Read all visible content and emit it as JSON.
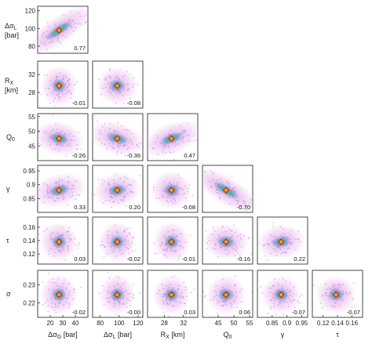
{
  "chart_data": {
    "type": "scatter",
    "layout": "corner-triangle",
    "parameters": [
      {
        "key": "dsG",
        "range": [
          10,
          50
        ],
        "ticks": [
          20,
          30,
          40
        ],
        "tick_labels": [
          "20",
          "30",
          "40"
        ],
        "label": "Δσ",
        "sub": "G",
        "unit": " [bar]"
      },
      {
        "key": "dsL",
        "range": [
          72,
          125
        ],
        "ticks": [
          80,
          100,
          120
        ],
        "tick_labels": [
          "80",
          "100",
          "120"
        ],
        "label": "Δσ",
        "sub": "L",
        "unit": " [bar]"
      },
      {
        "key": "RX",
        "range": [
          24.5,
          35
        ],
        "ticks": [
          28,
          32
        ],
        "tick_labels": [
          "28",
          "32"
        ],
        "label": "R",
        "sub": "X",
        "unit": " [km]"
      },
      {
        "key": "Q0",
        "range": [
          40,
          56
        ],
        "ticks": [
          45,
          50,
          55
        ],
        "tick_labels": [
          "45",
          "50",
          "55"
        ],
        "label": "Q",
        "sub": "0",
        "unit": ""
      },
      {
        "key": "gamma",
        "range": [
          0.8,
          0.97
        ],
        "ticks": [
          0.85,
          0.9,
          0.95
        ],
        "tick_labels": [
          "0.85",
          "0.9",
          "0.95"
        ],
        "label": "γ",
        "sub": "",
        "unit": ""
      },
      {
        "key": "tau",
        "range": [
          0.105,
          0.175
        ],
        "ticks": [
          0.12,
          0.14,
          0.16
        ],
        "tick_labels": [
          "0.12",
          "0.14",
          "0.16"
        ],
        "label": "τ",
        "sub": "",
        "unit": ""
      },
      {
        "key": "sigma",
        "range": [
          0.212,
          0.238
        ],
        "ticks": [
          0.22,
          0.23
        ],
        "tick_labels": [
          "0.22",
          "0.23"
        ],
        "label": "σ",
        "sub": "",
        "unit": ""
      }
    ],
    "centers": {
      "dsG": 27,
      "dsL": 98,
      "RX": 29.5,
      "Q0": 47.5,
      "gamma": 0.88,
      "tau": 0.138,
      "sigma": 0.2245
    },
    "panels": [
      {
        "row": "dsL",
        "col": "dsG",
        "correlation": "0.77"
      },
      {
        "row": "RX",
        "col": "dsG",
        "correlation": "-0.01"
      },
      {
        "row": "RX",
        "col": "dsL",
        "correlation": "-0.08"
      },
      {
        "row": "Q0",
        "col": "dsG",
        "correlation": "-0.26"
      },
      {
        "row": "Q0",
        "col": "dsL",
        "correlation": "-0.36"
      },
      {
        "row": "Q0",
        "col": "RX",
        "correlation": "0.47"
      },
      {
        "row": "gamma",
        "col": "dsG",
        "correlation": "0.33"
      },
      {
        "row": "gamma",
        "col": "dsL",
        "correlation": "0.20"
      },
      {
        "row": "gamma",
        "col": "RX",
        "correlation": "-0.08"
      },
      {
        "row": "gamma",
        "col": "Q0",
        "correlation": "-0.70"
      },
      {
        "row": "tau",
        "col": "dsG",
        "correlation": "0.03"
      },
      {
        "row": "tau",
        "col": "dsL",
        "correlation": "-0.02"
      },
      {
        "row": "tau",
        "col": "RX",
        "correlation": "-0.01"
      },
      {
        "row": "tau",
        "col": "Q0",
        "correlation": "-0.16"
      },
      {
        "row": "tau",
        "col": "gamma",
        "correlation": "0.22"
      },
      {
        "row": "sigma",
        "col": "dsG",
        "correlation": "-0.02"
      },
      {
        "row": "sigma",
        "col": "dsL",
        "correlation": "-0.00"
      },
      {
        "row": "sigma",
        "col": "RX",
        "correlation": "0.03"
      },
      {
        "row": "sigma",
        "col": "Q0",
        "correlation": "0.06"
      },
      {
        "row": "sigma",
        "col": "gamma",
        "correlation": "-0.07"
      },
      {
        "row": "sigma",
        "col": "tau",
        "correlation": "-0.07"
      }
    ],
    "colors": {
      "density_low": "#e9b8ec",
      "density_mid": "#b070d8",
      "density_high": "#3ab0b0",
      "density_peak": "#2fd05a",
      "marker_fill": "#ff9a2a",
      "marker_stroke": "#c81e1e"
    },
    "grid": false,
    "legend": "none"
  }
}
